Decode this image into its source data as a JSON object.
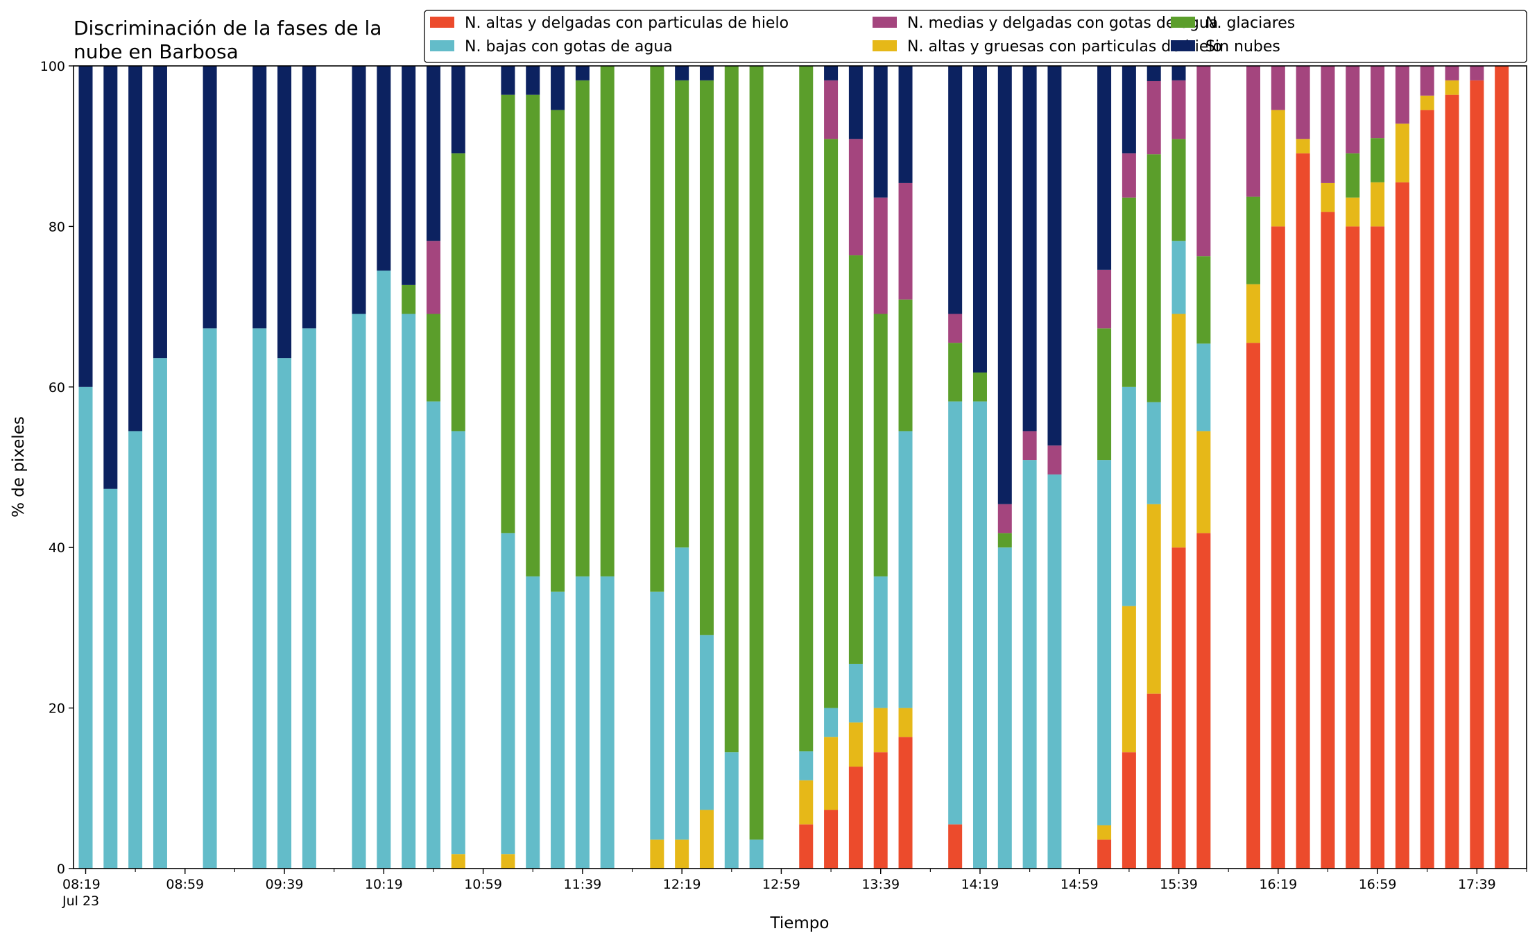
{
  "chart_data": {
    "type": "bar",
    "stacked": true,
    "title_lines": [
      "Discriminación de la fases de la",
      "nube en Barbosa"
    ],
    "xlabel": "Tiempo",
    "ylabel": "% de pixeles",
    "ylim": [
      0,
      100
    ],
    "yticks": [
      0,
      20,
      40,
      60,
      80,
      100
    ],
    "xrange": [
      "08:19",
      "17:59"
    ],
    "slot_minutes": 10,
    "first_time": "08:19",
    "xtick_labels": [
      {
        "time": "08:19",
        "label": "08:19",
        "sublabel": "Jul 23"
      },
      {
        "time": "08:59",
        "label": "08:59"
      },
      {
        "time": "09:39",
        "label": "09:39"
      },
      {
        "time": "10:19",
        "label": "10:19"
      },
      {
        "time": "10:59",
        "label": "10:59"
      },
      {
        "time": "11:39",
        "label": "11:39"
      },
      {
        "time": "12:19",
        "label": "12:19"
      },
      {
        "time": "12:59",
        "label": "12:59"
      },
      {
        "time": "13:39",
        "label": "13:39"
      },
      {
        "time": "14:19",
        "label": "14:19"
      },
      {
        "time": "14:59",
        "label": "14:59"
      },
      {
        "time": "15:39",
        "label": "15:39"
      },
      {
        "time": "16:19",
        "label": "16:19"
      },
      {
        "time": "16:59",
        "label": "16:59"
      },
      {
        "time": "17:39",
        "label": "17:39"
      }
    ],
    "legend": {
      "placement": "top-right",
      "columns": 3
    },
    "series": [
      {
        "key": "ah",
        "name": "N. altas y delgadas con particulas de hielo",
        "color": "#ec4b2c"
      },
      {
        "key": "ag",
        "name": "N. altas y gruesas con particulas de hielo",
        "color": "#e6b818"
      },
      {
        "key": "bg",
        "name": "N. bajas con gotas de agua",
        "color": "#63bcc9"
      },
      {
        "key": "gl",
        "name": "N. glaciares",
        "color": "#5b9e2b"
      },
      {
        "key": "md",
        "name": "N. medias y delgadas con gotas de agua",
        "color": "#a4457e"
      },
      {
        "key": "sn",
        "name": "Sin nubes",
        "color": "#0c2260"
      }
    ],
    "stack_order": [
      "ah",
      "ag",
      "bg",
      "gl",
      "md",
      "sn"
    ],
    "legend_order": [
      "ah",
      "bg",
      "md",
      "ag",
      "gl",
      "sn"
    ],
    "bars": [
      {
        "time": "08:19",
        "ah": 0,
        "ag": 0,
        "bg": 60,
        "gl": 0,
        "md": 0,
        "sn": 40
      },
      {
        "time": "08:29",
        "ah": 0,
        "ag": 0,
        "bg": 47.3,
        "gl": 0,
        "md": 0,
        "sn": 52.7
      },
      {
        "time": "08:39",
        "ah": 0,
        "ag": 0,
        "bg": 54.5,
        "gl": 0,
        "md": 0,
        "sn": 45.5
      },
      {
        "time": "08:49",
        "ah": 0,
        "ag": 0,
        "bg": 63.6,
        "gl": 0,
        "md": 0,
        "sn": 36.4
      },
      {
        "time": "09:09",
        "ah": 0,
        "ag": 0,
        "bg": 67.3,
        "gl": 0,
        "md": 0,
        "sn": 32.7
      },
      {
        "time": "09:29",
        "ah": 0,
        "ag": 0,
        "bg": 67.3,
        "gl": 0,
        "md": 0,
        "sn": 32.7
      },
      {
        "time": "09:39",
        "ah": 0,
        "ag": 0,
        "bg": 63.6,
        "gl": 0,
        "md": 0,
        "sn": 36.4
      },
      {
        "time": "09:49",
        "ah": 0,
        "ag": 0,
        "bg": 67.3,
        "gl": 0,
        "md": 0,
        "sn": 32.7
      },
      {
        "time": "10:09",
        "ah": 0,
        "ag": 0,
        "bg": 69.1,
        "gl": 0,
        "md": 0,
        "sn": 30.9
      },
      {
        "time": "10:19",
        "ah": 0,
        "ag": 0,
        "bg": 74.5,
        "gl": 0,
        "md": 0,
        "sn": 25.5
      },
      {
        "time": "10:29",
        "ah": 0,
        "ag": 0,
        "bg": 69.1,
        "gl": 3.6,
        "md": 0,
        "sn": 27.3
      },
      {
        "time": "10:39",
        "ah": 0,
        "ag": 0,
        "bg": 58.2,
        "gl": 10.9,
        "md": 9.1,
        "sn": 21.8
      },
      {
        "time": "10:49",
        "ah": 0,
        "ag": 1.8,
        "bg": 52.7,
        "gl": 34.6,
        "md": 0,
        "sn": 10.9
      },
      {
        "time": "11:09",
        "ah": 0,
        "ag": 1.8,
        "bg": 40.0,
        "gl": 54.6,
        "md": 0,
        "sn": 3.6
      },
      {
        "time": "11:19",
        "ah": 0,
        "ag": 0,
        "bg": 36.4,
        "gl": 60.0,
        "md": 0,
        "sn": 3.6
      },
      {
        "time": "11:29",
        "ah": 0,
        "ag": 0,
        "bg": 34.5,
        "gl": 60.0,
        "md": 0,
        "sn": 5.5
      },
      {
        "time": "11:39",
        "ah": 0,
        "ag": 0,
        "bg": 36.4,
        "gl": 61.8,
        "md": 0,
        "sn": 1.8
      },
      {
        "time": "11:49",
        "ah": 0,
        "ag": 0,
        "bg": 36.4,
        "gl": 63.6,
        "md": 0,
        "sn": 0
      },
      {
        "time": "12:09",
        "ah": 0,
        "ag": 3.6,
        "bg": 30.9,
        "gl": 65.5,
        "md": 0,
        "sn": 0
      },
      {
        "time": "12:19",
        "ah": 0,
        "ag": 3.6,
        "bg": 36.4,
        "gl": 58.2,
        "md": 0,
        "sn": 1.8
      },
      {
        "time": "12:29",
        "ah": 0,
        "ag": 7.3,
        "bg": 21.8,
        "gl": 69.1,
        "md": 0,
        "sn": 1.8
      },
      {
        "time": "12:39",
        "ah": 0,
        "ag": 0,
        "bg": 14.5,
        "gl": 85.5,
        "md": 0,
        "sn": 0
      },
      {
        "time": "12:49",
        "ah": 0,
        "ag": 0,
        "bg": 3.6,
        "gl": 96.4,
        "md": 0,
        "sn": 0
      },
      {
        "time": "13:09",
        "ah": 5.5,
        "ag": 5.5,
        "bg": 3.6,
        "gl": 85.4,
        "md": 0,
        "sn": 0
      },
      {
        "time": "13:19",
        "ah": 7.3,
        "ag": 9.1,
        "bg": 3.6,
        "gl": 70.9,
        "md": 7.3,
        "sn": 1.8
      },
      {
        "time": "13:29",
        "ah": 12.7,
        "ag": 5.5,
        "bg": 7.3,
        "gl": 50.9,
        "md": 14.5,
        "sn": 9.1
      },
      {
        "time": "13:39",
        "ah": 14.5,
        "ag": 5.5,
        "bg": 16.4,
        "gl": 32.7,
        "md": 14.5,
        "sn": 16.4
      },
      {
        "time": "13:49",
        "ah": 16.4,
        "ag": 3.6,
        "bg": 34.5,
        "gl": 16.4,
        "md": 14.5,
        "sn": 14.6
      },
      {
        "time": "14:09",
        "ah": 5.5,
        "ag": 0,
        "bg": 52.7,
        "gl": 7.3,
        "md": 3.6,
        "sn": 30.9
      },
      {
        "time": "14:19",
        "ah": 0,
        "ag": 0,
        "bg": 58.2,
        "gl": 3.6,
        "md": 0,
        "sn": 38.2
      },
      {
        "time": "14:29",
        "ah": 0,
        "ag": 0,
        "bg": 40.0,
        "gl": 1.8,
        "md": 3.6,
        "sn": 54.6
      },
      {
        "time": "14:39",
        "ah": 0,
        "ag": 0,
        "bg": 50.9,
        "gl": 0,
        "md": 3.6,
        "sn": 45.5
      },
      {
        "time": "14:49",
        "ah": 0,
        "ag": 0,
        "bg": 49.1,
        "gl": 0,
        "md": 3.6,
        "sn": 47.3
      },
      {
        "time": "15:09",
        "ah": 3.6,
        "ag": 1.8,
        "bg": 45.5,
        "gl": 16.4,
        "md": 7.3,
        "sn": 25.4
      },
      {
        "time": "15:19",
        "ah": 14.5,
        "ag": 18.2,
        "bg": 27.3,
        "gl": 23.6,
        "md": 5.5,
        "sn": 10.9
      },
      {
        "time": "15:29",
        "ah": 21.8,
        "ag": 23.6,
        "bg": 12.7,
        "gl": 30.9,
        "md": 9.1,
        "sn": 1.9
      },
      {
        "time": "15:39",
        "ah": 40.0,
        "ag": 29.1,
        "bg": 9.1,
        "gl": 12.7,
        "md": 7.3,
        "sn": 1.8
      },
      {
        "time": "15:49",
        "ah": 41.8,
        "ag": 12.7,
        "bg": 10.9,
        "gl": 10.9,
        "md": 23.7,
        "sn": 0
      },
      {
        "time": "16:09",
        "ah": 65.5,
        "ag": 7.3,
        "bg": 0,
        "gl": 10.9,
        "md": 16.3,
        "sn": 0
      },
      {
        "time": "16:19",
        "ah": 80.0,
        "ag": 14.5,
        "bg": 0,
        "gl": 0,
        "md": 5.5,
        "sn": 0
      },
      {
        "time": "16:29",
        "ah": 89.1,
        "ag": 1.8,
        "bg": 0,
        "gl": 0,
        "md": 9.1,
        "sn": 0
      },
      {
        "time": "16:39",
        "ah": 81.8,
        "ag": 3.6,
        "bg": 0,
        "gl": 0,
        "md": 14.6,
        "sn": 0
      },
      {
        "time": "16:49",
        "ah": 80.0,
        "ag": 3.6,
        "bg": 0,
        "gl": 5.5,
        "md": 10.9,
        "sn": 0
      },
      {
        "time": "16:59",
        "ah": 80.0,
        "ag": 5.5,
        "bg": 0,
        "gl": 5.5,
        "md": 9.0,
        "sn": 0
      },
      {
        "time": "17:09",
        "ah": 85.5,
        "ag": 7.3,
        "bg": 0,
        "gl": 0,
        "md": 7.2,
        "sn": 0
      },
      {
        "time": "17:19",
        "ah": 94.5,
        "ag": 1.8,
        "bg": 0,
        "gl": 0,
        "md": 3.7,
        "sn": 0
      },
      {
        "time": "17:29",
        "ah": 96.4,
        "ag": 1.8,
        "bg": 0,
        "gl": 0,
        "md": 1.8,
        "sn": 0
      },
      {
        "time": "17:39",
        "ah": 98.2,
        "ag": 0,
        "bg": 0,
        "gl": 0,
        "md": 1.8,
        "sn": 0
      },
      {
        "time": "17:49",
        "ah": 100,
        "ag": 0,
        "bg": 0,
        "gl": 0,
        "md": 0,
        "sn": 0
      }
    ]
  }
}
